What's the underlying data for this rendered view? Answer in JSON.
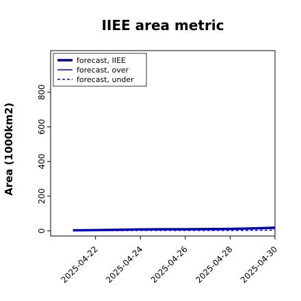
{
  "chart_data": {
    "type": "line",
    "title": "IIEE area metric",
    "xlabel": "",
    "ylabel": "Area (1000km2)",
    "x_dates": [
      "2025-04-21",
      "2025-04-22",
      "2025-04-23",
      "2025-04-24",
      "2025-04-25",
      "2025-04-26",
      "2025-04-27",
      "2025-04-28",
      "2025-04-29",
      "2025-04-30"
    ],
    "x_tick_labels": [
      "2025-04-22",
      "2025-04-24",
      "2025-04-26",
      "2025-04-28",
      "2025-04-30"
    ],
    "x_tick_dates": [
      "2025-04-22",
      "2025-04-24",
      "2025-04-26",
      "2025-04-28",
      "2025-04-30"
    ],
    "highlight_tick": "2025-04-22",
    "x_range": [
      "2025-04-20",
      "2025-04-30"
    ],
    "y_ticks": [
      0,
      200,
      400,
      600,
      800
    ],
    "ylim": [
      -30,
      1040
    ],
    "grid": false,
    "legend_position": "top-left",
    "series": [
      {
        "name": "forecast, IIEE",
        "style": "solid-thick",
        "color": "#00008b",
        "values": [
          3,
          4,
          6,
          8,
          9,
          9,
          10,
          11,
          14,
          18
        ]
      },
      {
        "name": "forecast, over",
        "style": "solid-thin",
        "color": "#0000cd",
        "values": [
          2,
          3,
          5,
          6,
          7,
          7,
          8,
          9,
          11,
          14
        ]
      },
      {
        "name": "forecast, under",
        "style": "dashed",
        "color": "#0000ff",
        "values": [
          1,
          1,
          1,
          2,
          2,
          2,
          2,
          2,
          3,
          4
        ]
      }
    ],
    "highlight_color": "#228b22"
  }
}
